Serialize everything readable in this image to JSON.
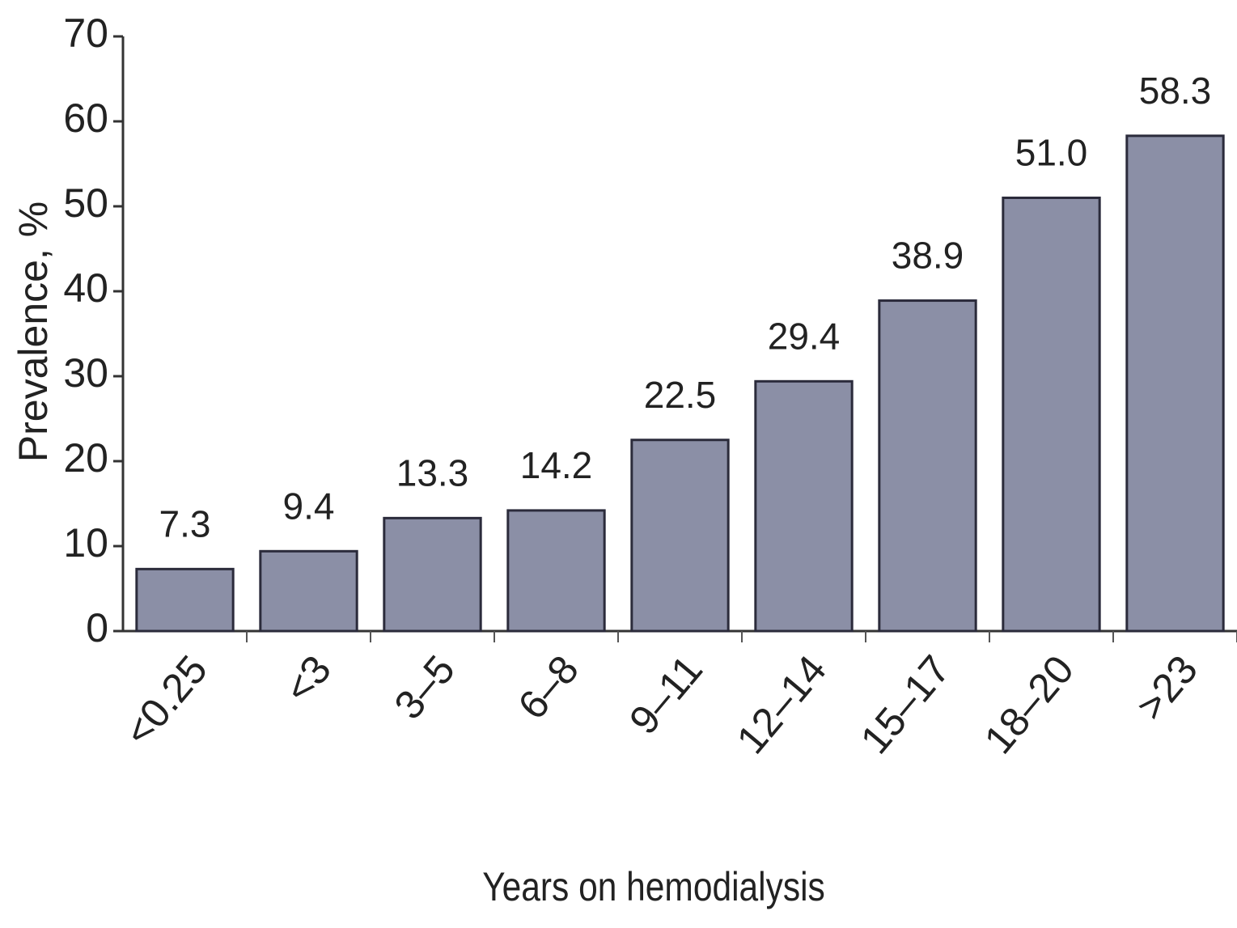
{
  "chart_data": {
    "type": "bar",
    "x_label": "Years on hemodialysis",
    "y_label": "Prevalence, %",
    "categories": [
      "<0.25",
      "<3",
      "3–5",
      "6–8",
      "9–11",
      "12–14",
      "15–17",
      "18–20",
      ">23"
    ],
    "values": [
      7.3,
      9.4,
      13.3,
      14.2,
      22.5,
      29.4,
      38.9,
      51.0,
      58.3
    ],
    "value_labels": [
      "7.3",
      "9.4",
      "13.3",
      "14.2",
      "22.5",
      "29.4",
      "38.9",
      "51.0",
      "58.3"
    ],
    "color": "#8b8fa6",
    "ylim": [
      0,
      70
    ],
    "yticks": [
      0,
      10,
      20,
      30,
      40,
      50,
      60,
      70
    ],
    "grid": false
  }
}
